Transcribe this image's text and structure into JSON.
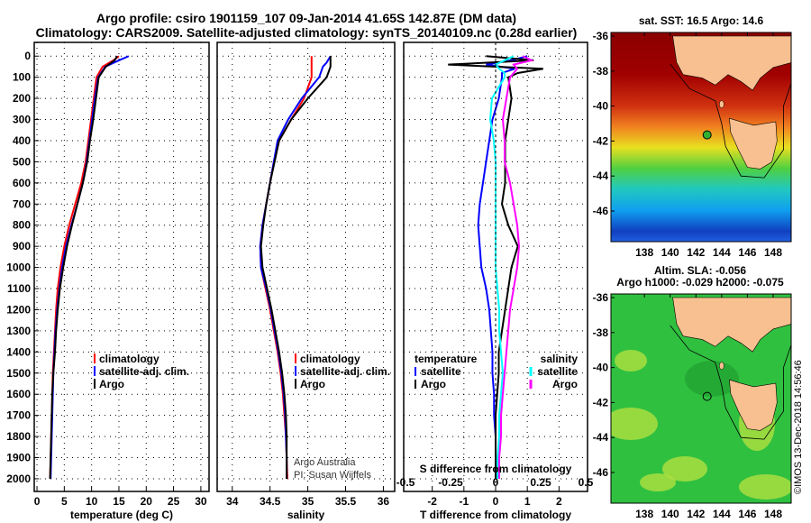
{
  "title_line1": "Argo profile: csiro 1901159_107 09-Jan-2014 41.65S 142.87E (DM data)",
  "title_line2": "Climatology: CARS2009. Satellite-adjusted climatology: synTS_20140109.nc (0.28d earlier)",
  "credit": "Argo Australia",
  "pi": "PI: Susan Wijffels",
  "footer": "©IMOS 13-Dec-2018 14:56:46",
  "colors": {
    "climatology": "#ff0000",
    "satellite": "#0000ff",
    "argo": "#000000",
    "sal_satellite": "#00ffff",
    "sal_argo": "#ff00ff",
    "land": "#f8c090"
  },
  "chart_data": [
    {
      "type": "line",
      "id": "temperature",
      "xlabel": "temperature (deg C)",
      "ylabel": "",
      "xlim": [
        -0.5,
        31.5
      ],
      "ylim": [
        2060,
        -65
      ],
      "xticks": [
        0,
        5,
        10,
        15,
        20,
        25,
        30
      ],
      "yticks": [
        0,
        100,
        200,
        300,
        400,
        500,
        600,
        700,
        800,
        900,
        1000,
        1100,
        1200,
        1300,
        1400,
        1500,
        1600,
        1700,
        1800,
        1900,
        2000
      ],
      "depth": [
        0,
        20,
        50,
        100,
        200,
        300,
        400,
        500,
        600,
        700,
        800,
        900,
        1000,
        1100,
        1200,
        1300,
        1400,
        1500,
        1600,
        1700,
        1800,
        1900,
        2000
      ],
      "series": [
        {
          "name": "climatology",
          "color": "#ff0000",
          "values": [
            15.0,
            14.0,
            12.0,
            10.9,
            10.4,
            9.9,
            9.4,
            8.9,
            8.1,
            7.0,
            5.9,
            5.0,
            4.3,
            3.8,
            3.5,
            3.3,
            3.1,
            2.9,
            2.8,
            2.7,
            2.6,
            2.5,
            2.4
          ]
        },
        {
          "name": "satellite-adj. clim.",
          "color": "#0000ff",
          "values": [
            16.8,
            15.0,
            12.5,
            11.2,
            10.6,
            10.1,
            9.6,
            9.1,
            8.4,
            7.4,
            6.3,
            5.3,
            4.6,
            4.1,
            3.7,
            3.4,
            3.2,
            3.0,
            2.9,
            2.8,
            2.7,
            2.6,
            2.5
          ]
        },
        {
          "name": "Argo",
          "color": "#000000",
          "values": [
            14.7,
            14.2,
            12.6,
            11.3,
            10.8,
            10.3,
            9.7,
            9.2,
            8.4,
            7.4,
            6.4,
            5.5,
            4.8,
            4.2,
            3.8,
            3.5,
            3.3,
            3.0,
            2.8,
            2.7,
            2.6,
            2.5,
            2.4
          ]
        }
      ]
    },
    {
      "type": "line",
      "id": "salinity",
      "xlabel": "salinity",
      "xlim": [
        33.8,
        36.15
      ],
      "ylim": [
        2060,
        -65
      ],
      "xticks": [
        34,
        34.5,
        35,
        35.5,
        36
      ],
      "depth": [
        0,
        30,
        50,
        100,
        200,
        300,
        400,
        500,
        600,
        700,
        800,
        900,
        1000,
        1100,
        1200,
        1300,
        1400,
        1500,
        1600,
        1700,
        1800,
        1900,
        2000
      ],
      "series": [
        {
          "name": "climatology",
          "color": "#ff0000",
          "values": [
            35.05,
            35.05,
            35.05,
            35.05,
            34.95,
            34.78,
            34.62,
            34.55,
            34.5,
            34.45,
            34.4,
            34.37,
            34.38,
            34.44,
            34.5,
            34.55,
            34.6,
            34.64,
            34.67,
            34.69,
            34.71,
            34.72,
            34.73
          ]
        },
        {
          "name": "satellite-adj. clim.",
          "color": "#0000ff",
          "values": [
            35.3,
            35.25,
            35.2,
            35.15,
            34.92,
            34.74,
            34.6,
            34.55,
            34.5,
            34.45,
            34.4,
            34.37,
            34.38,
            34.45,
            34.51,
            34.56,
            34.61,
            34.65,
            34.68,
            34.7,
            34.71,
            34.72,
            34.72
          ]
        },
        {
          "name": "Argo",
          "color": "#000000",
          "values": [
            35.3,
            35.3,
            35.3,
            35.25,
            35.0,
            34.78,
            34.62,
            34.56,
            34.5,
            34.45,
            34.41,
            34.38,
            34.4,
            34.46,
            34.52,
            34.57,
            34.62,
            34.66,
            34.69,
            34.71,
            34.72,
            34.72,
            34.72
          ]
        }
      ]
    },
    {
      "type": "line",
      "id": "difference",
      "xlabel": "T difference from climatology",
      "x2label": "S difference from climatology",
      "xlim": [
        -2.9,
        2.9
      ],
      "ylim": [
        2060,
        -65
      ],
      "xticks": [
        -2,
        -1,
        0,
        1,
        2
      ],
      "x2ticks": [
        -0.5,
        -0.25,
        0,
        0.25,
        0.5
      ],
      "x2ticklabels": [
        "-0.5",
        "-0.25",
        "0",
        "0.25",
        "0.5"
      ],
      "depth": [
        0,
        20,
        40,
        60,
        80,
        100,
        200,
        300,
        400,
        500,
        600,
        700,
        800,
        900,
        1000,
        1100,
        1200,
        1300,
        1400,
        1500,
        1600,
        1700,
        1800,
        1900,
        2000
      ],
      "legend_groups": [
        "temperature",
        "salinity"
      ],
      "series": [
        {
          "name": "satellite",
          "group": "temperature",
          "color": "#0000ff",
          "values": [
            1.0,
            0.5,
            -0.3,
            0.6,
            0.2,
            0.2,
            0.1,
            -0.1,
            -0.2,
            -0.3,
            -0.4,
            -0.5,
            -0.55,
            -0.5,
            -0.45,
            -0.3,
            -0.2,
            -0.15,
            -0.1,
            -0.1,
            -0.05,
            -0.05,
            0,
            0,
            0
          ]
        },
        {
          "name": "Argo",
          "group": "temperature",
          "color": "#000000",
          "values": [
            -0.3,
            1.2,
            -1.5,
            1.5,
            0.7,
            0.4,
            0.5,
            0.4,
            0.3,
            0.3,
            0.3,
            0.2,
            0.4,
            0.7,
            0.5,
            0.4,
            0.3,
            0.2,
            0.1,
            0.1,
            0.05,
            0,
            0,
            0,
            0
          ]
        },
        {
          "name": "satellite",
          "group": "salinity",
          "color": "#00ffff",
          "values": [
            0.1,
            0.05,
            0.0,
            0.02,
            0.05,
            0.05,
            -0.02,
            -0.03,
            -0.01,
            0,
            0,
            0,
            0,
            0,
            0,
            0.01,
            0.02,
            0.02,
            0.03,
            0.04,
            0.03,
            0.02,
            0.02,
            0.01,
            0.01
          ]
        },
        {
          "name": "Argo",
          "group": "salinity",
          "color": "#ff00ff",
          "values": [
            0.15,
            0.2,
            0.1,
            0.12,
            0.1,
            0.08,
            0.06,
            0.04,
            0.05,
            0.05,
            0.08,
            0.1,
            0.12,
            0.13,
            0.12,
            0.1,
            0.08,
            0.07,
            0.06,
            0.05,
            0.04,
            0.03,
            0.03,
            0.02,
            0.02
          ]
        }
      ]
    }
  ],
  "maps": [
    {
      "id": "sst",
      "title": "sat. SST: 16.5 Argo: 14.6",
      "lon_ticks": [
        138,
        140,
        142,
        144,
        146,
        148
      ],
      "lat_ticks": [
        -36,
        -38,
        -40,
        -42,
        -44,
        -46
      ],
      "argo_lon": 142.87,
      "argo_lat": -41.65
    },
    {
      "id": "sla",
      "title1": "Altim. SLA: -0.056",
      "title2": "Argo h1000: -0.029 h2000: -0.075",
      "lon_ticks": [
        138,
        140,
        142,
        144,
        146,
        148
      ],
      "lat_ticks": [
        -36,
        -38,
        -40,
        -42,
        -44,
        -46
      ],
      "argo_lon": 142.87,
      "argo_lat": -41.65
    }
  ]
}
